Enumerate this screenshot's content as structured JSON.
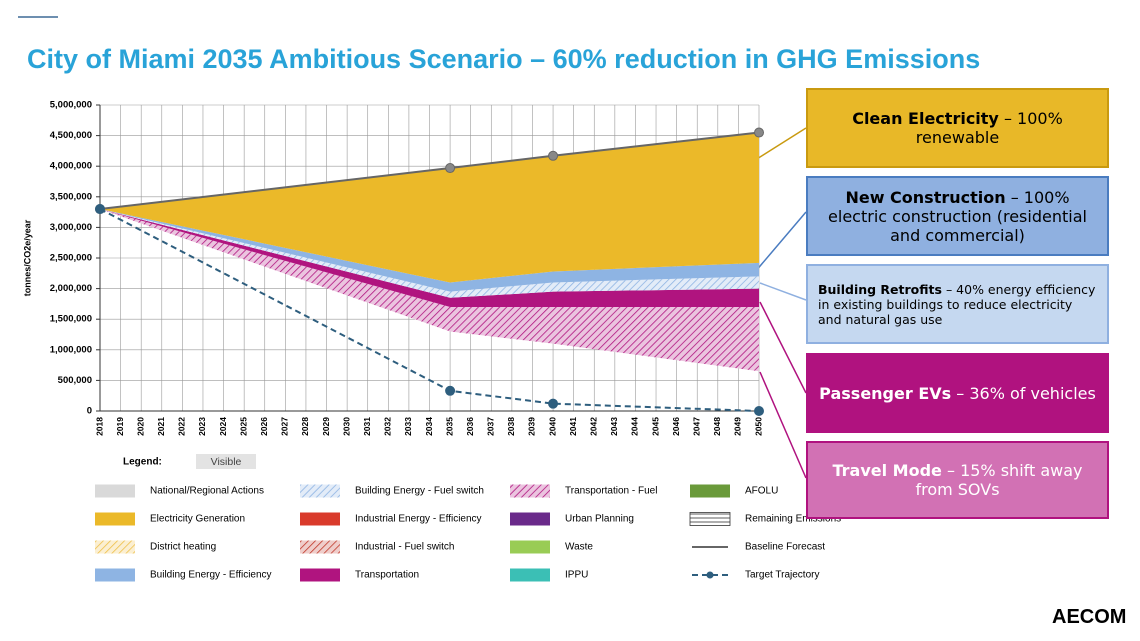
{
  "header": {
    "title": "City of Miami 2035 Ambitious Scenario – 60% reduction in GHG Emissions"
  },
  "chart_data": {
    "type": "area",
    "y_label": "tonnes/CO2e/year",
    "x": [
      2018,
      2035,
      2040,
      2050
    ],
    "xlim": [
      2018,
      2050
    ],
    "xticks": [
      2018,
      2019,
      2020,
      2021,
      2022,
      2023,
      2024,
      2025,
      2026,
      2027,
      2028,
      2029,
      2030,
      2031,
      2032,
      2033,
      2034,
      2035,
      2036,
      2037,
      2038,
      2039,
      2040,
      2041,
      2042,
      2043,
      2044,
      2045,
      2046,
      2047,
      2048,
      2049,
      2050
    ],
    "ylim": [
      0,
      5000000
    ],
    "yticks": [
      0,
      {
        "value": 500000,
        "label": "500,000"
      },
      {
        "value": 1000000,
        "label": "1,000,000"
      },
      {
        "value": 1500000,
        "label": "1,500,000"
      },
      {
        "value": 2000000,
        "label": "2,000,000"
      },
      {
        "value": 2500000,
        "label": "2,500,000"
      },
      {
        "value": 3000000,
        "label": "3,000,000"
      },
      {
        "value": 3500000,
        "label": "3,500,000"
      },
      {
        "value": 4000000,
        "label": "4,000,000"
      },
      {
        "value": 4500000,
        "label": "4,500,000"
      },
      {
        "value": 5000000,
        "label": "5,000,000"
      }
    ],
    "grid": true,
    "legend_title": "Legend:",
    "legend_badge": "Visible",
    "series": [
      {
        "name": "National/Regional Actions",
        "color": "#d9d9d9",
        "fill": "solid"
      },
      {
        "name": "Electricity Generation",
        "color": "#ebb929",
        "fill": "solid",
        "kind": "area",
        "values": [
          0,
          1870000,
          1890000,
          2130000
        ]
      },
      {
        "name": "District heating",
        "color": "#efc04a",
        "fill": "hatch"
      },
      {
        "name": "Building Energy - Efficiency",
        "color": "#8eb4e3",
        "fill": "solid",
        "kind": "area",
        "values": [
          0,
          150000,
          180000,
          220000
        ]
      },
      {
        "name": "Building Energy - Fuel switch",
        "color": "#8eb4e3",
        "fill": "hatch",
        "kind": "area",
        "values": [
          0,
          100000,
          150000,
          200000
        ]
      },
      {
        "name": "Industrial Energy - Efficiency",
        "color": "#d93a2b",
        "fill": "solid"
      },
      {
        "name": "Industrial - Fuel switch",
        "color": "#c0392b",
        "fill": "hatch"
      },
      {
        "name": "Transportation",
        "color": "#b0147f",
        "fill": "solid",
        "kind": "area",
        "values": [
          0,
          150000,
          250000,
          300000
        ]
      },
      {
        "name": "Transportation - Fuel",
        "color": "#b0147f",
        "fill": "hatch",
        "kind": "area",
        "values": [
          0,
          400000,
          600000,
          1050000
        ]
      },
      {
        "name": "Urban Planning",
        "color": "#6a2a8a",
        "fill": "solid"
      },
      {
        "name": "Waste",
        "color": "#99cc55",
        "fill": "solid"
      },
      {
        "name": "IPPU",
        "color": "#3bbfb5",
        "fill": "solid"
      },
      {
        "name": "AFOLU",
        "color": "#6a9a3a",
        "fill": "solid"
      },
      {
        "name": "Remaining Emissions",
        "color": "#333333",
        "fill": "lines",
        "kind": "area",
        "values": [
          3300000,
          1300000,
          1100000,
          650000
        ]
      },
      {
        "name": "Baseline Forecast",
        "color": "#666666",
        "kind": "line",
        "values": [
          3300000,
          3970000,
          4170000,
          4550000
        ]
      },
      {
        "name": "Target Trajectory",
        "color": "#2e5e7e",
        "kind": "line",
        "dashed": true,
        "values": [
          3300000,
          330000,
          120000,
          0
        ]
      }
    ]
  },
  "callouts": [
    {
      "bold": "Clean Electricity",
      "text": "– 100% renewable"
    },
    {
      "bold": "New Construction",
      "text": "– 100% electric construction (residential and commercial)"
    },
    {
      "bold": "Building Retrofits",
      "text": "– 40% energy efficiency in existing buildings to reduce electricity and natural gas use"
    },
    {
      "bold": "Passenger EVs",
      "text": "– 36% of vehicles"
    },
    {
      "bold": "Travel Mode",
      "text": "– 15% shift away from SOVs"
    }
  ],
  "logo": "AECOM"
}
